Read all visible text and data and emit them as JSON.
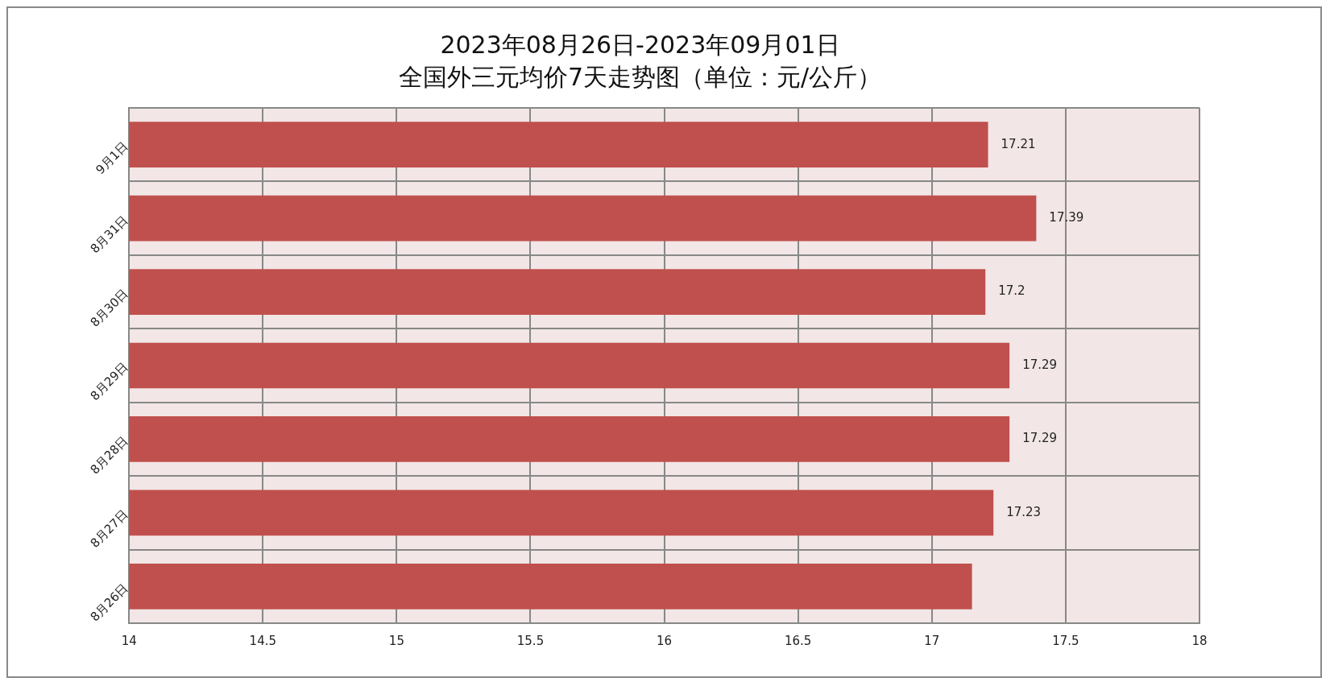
{
  "chart_data": {
    "type": "bar",
    "orientation": "horizontal",
    "title": "2023年08月26日-2023年09月01日",
    "subtitle": "全国外三元均价7天走势图（单位：元/公斤）",
    "categories": [
      "9月1日",
      "8月31日",
      "8月30日",
      "8月29日",
      "8月28日",
      "8月27日",
      "8月26日"
    ],
    "values": [
      17.21,
      17.39,
      17.2,
      17.29,
      17.29,
      17.23,
      17.15
    ],
    "value_labels": [
      "17.21",
      "17.39",
      "17.2",
      "17.29",
      "17.29",
      "17.23",
      null
    ],
    "color": "#c0504d",
    "xlim": [
      14,
      18
    ],
    "xticks": [
      14,
      14.5,
      15,
      15.5,
      16,
      16.5,
      17,
      17.5,
      18
    ],
    "grid": true,
    "legend": false
  }
}
